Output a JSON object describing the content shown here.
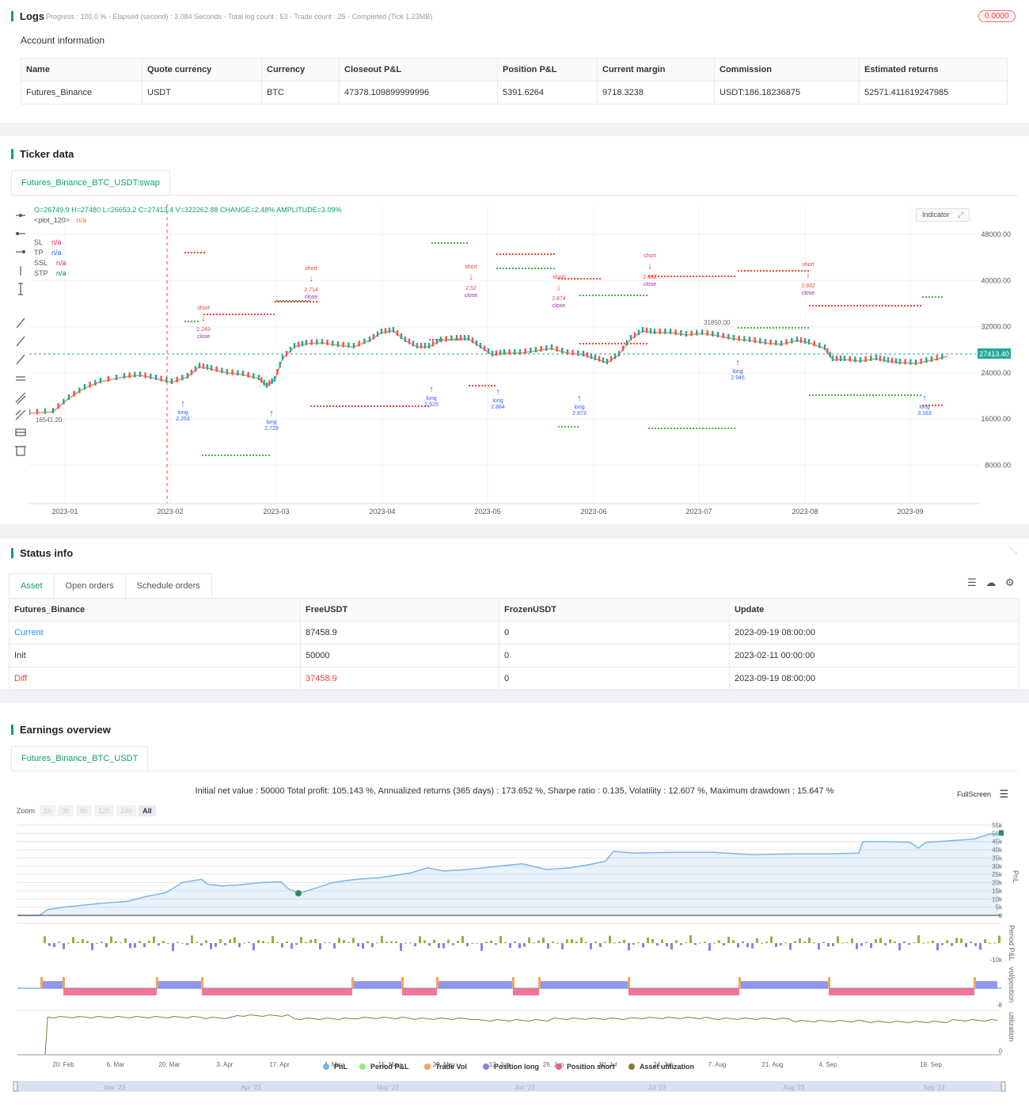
{
  "logs": {
    "title": "Logs",
    "progress": "Progress : 100.0 % - Elapsed (second) : 3.084  Seconds - Total log count : 53 - Trade count : 25 - Completed (Tick 1.23MB)",
    "badge": "0.0000",
    "account_title": "Account information",
    "table": {
      "headers": [
        "Name",
        "Quote currency",
        "Currency",
        "Closeout P&L",
        "Position P&L",
        "Current margin",
        "Commission",
        "Estimated returns"
      ],
      "row": [
        "Futures_Binance",
        "USDT",
        "BTC",
        "47378.109899999996",
        "5391.6264",
        "9718.3238",
        "USDT:186.18236875",
        "52571.411619247985"
      ]
    }
  },
  "ticker": {
    "title": "Ticker data",
    "tab": "Futures_Binance_BTC_USDT:swap",
    "ohlc": "O=26749.9 H=27480 L=26653.2 C=27413.4 V=322262.88 CHANGE=2.48% AMPLITUDE=3.09%",
    "plot_label": "<plot_120>",
    "plot_value": "n/a",
    "indicator_btn": "Indicator",
    "legend": [
      {
        "name": "SL",
        "value": "n/a",
        "color": "#e91e63"
      },
      {
        "name": "TP",
        "value": "n/a",
        "color": "#2962ff"
      },
      {
        "name": "SSL",
        "value": "n/a",
        "color": "#e91e63"
      },
      {
        "name": "STP",
        "value": "n/a",
        "color": "#00897b"
      }
    ],
    "y_ticks": [
      "48000.00",
      "40000.00",
      "32000.00",
      "24000.00",
      "16000.00",
      "8000.00"
    ],
    "x_ticks": [
      "2023-01",
      "2023-02",
      "2023-03",
      "2023-04",
      "2023-05",
      "2023-06",
      "2023-07",
      "2023-08",
      "2023-09"
    ],
    "last_price": "27413.40",
    "low_label": "16541.20",
    "high_label": "31850.00",
    "annotations": {
      "short": "short",
      "long": "long",
      "close": "close",
      "values": [
        "2.249",
        "2.253",
        "2.714",
        "2.729",
        "2.52",
        "2.525",
        "2.874",
        "2.884",
        "2.862",
        "2.873",
        "2.946",
        "2.932",
        "3.163"
      ]
    }
  },
  "status": {
    "title": "Status info",
    "tabs": [
      "Asset",
      "Open orders",
      "Schedule orders"
    ],
    "headers": [
      "Futures_Binance",
      "FreeUSDT",
      "FrozenUSDT",
      "Update"
    ],
    "rows": [
      [
        "Current",
        "87458.9",
        "0",
        "2023-09-19 08:00:00"
      ],
      [
        "Init",
        "50000",
        "0",
        "2023-02-11 00:00:00"
      ],
      [
        "Diff",
        "37458.9",
        "0",
        "2023-09-19 08:00:00"
      ]
    ]
  },
  "earnings": {
    "title": "Earnings overview",
    "tab": "Futures_Binance_BTC_USDT",
    "summary": "Initial net value : 50000 Total profit: 105.143 %, Annualized returns (365 days) : 173.652 %, Sharpe ratio : 0.135, Volatility : 12.607 %, Maximum drawdown : 15.647 %",
    "fullscreen": "FullScreen",
    "zoom_label": "Zoom",
    "zoom_buttons": [
      "1h",
      "3h",
      "8h",
      "12h",
      "24h",
      "All"
    ],
    "pnl_ticks": [
      "55k",
      "50k",
      "45k",
      "40k",
      "35k",
      "30k",
      "25k",
      "20k",
      "15k",
      "10k",
      "5k",
      "0"
    ],
    "axis_titles": [
      "PnL",
      "Period P&L",
      "vol/position",
      "utilization"
    ],
    "period_tick": "-10k",
    "vol_tick": "-8",
    "util_tick": "0",
    "x_ticks": [
      "20. Feb",
      "6. Mar",
      "20. Mar",
      "3. Apr",
      "17. Apr",
      "1. May",
      "15. May",
      "29. May",
      "12. Jun",
      "26. Jun",
      "10. Jul",
      "24. Jul",
      "7. Aug",
      "21. Aug",
      "4. Sep",
      "18. Sep"
    ],
    "legend": [
      {
        "name": "PnL",
        "color": "#7cb5ec"
      },
      {
        "name": "Period P&L",
        "color": "#90ed7d"
      },
      {
        "name": "Trade Vol",
        "color": "#f7a35c"
      },
      {
        "name": "Position long",
        "color": "#8085e9"
      },
      {
        "name": "Position short",
        "color": "#f15c80"
      },
      {
        "name": "Asset utilization",
        "color": "#8d7a3c"
      }
    ],
    "navigator": [
      "Mar '23",
      "Apr '23",
      "May '23",
      "Jun '23",
      "Jul '23",
      "Aug '23",
      "Sep '23"
    ]
  }
}
